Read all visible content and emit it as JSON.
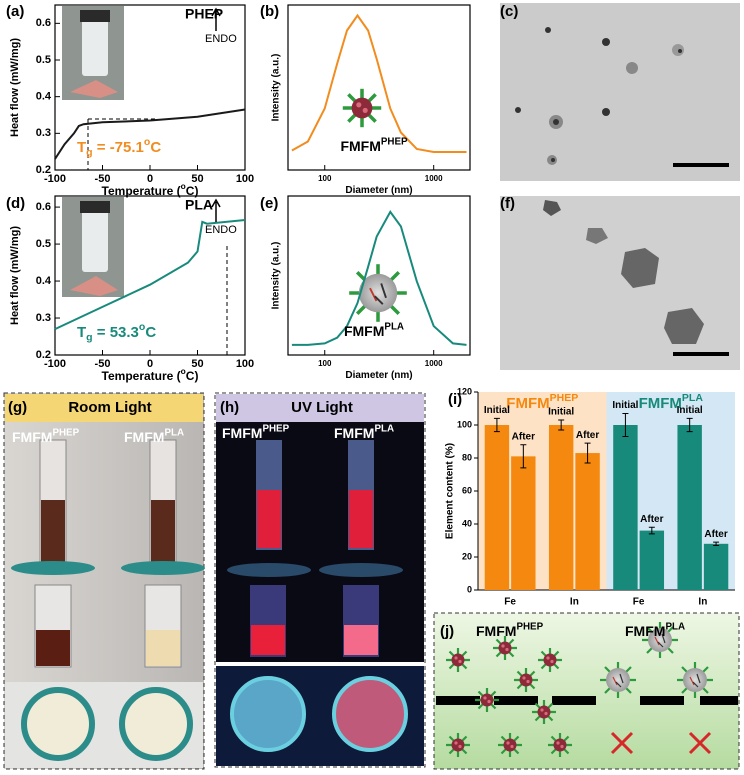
{
  "panel_labels": [
    "(a)",
    "(b)",
    "(c)",
    "(d)",
    "(e)",
    "(f)",
    "(g)",
    "(h)",
    "(i)",
    "(j)"
  ],
  "chart_data": [
    {
      "type": "line",
      "label": "PHEP",
      "annotation": "ENDO",
      "tg_label": [
        "T",
        "g",
        " = -75.1",
        "o",
        "C"
      ],
      "tg_color": "#f28c1e",
      "xlabel": [
        "Temperature (",
        "o",
        "C)"
      ],
      "ylabel": "Heat flow (mW/mg)",
      "x": [
        -100,
        -90,
        -80,
        -75,
        -70,
        -50,
        0,
        50,
        100
      ],
      "values": [
        0.23,
        0.27,
        0.3,
        0.32,
        0.325,
        0.33,
        0.335,
        0.345,
        0.365
      ],
      "color": "#1a1a1a",
      "xlim": [
        -100,
        100
      ],
      "xticks": [
        -100,
        -50,
        0,
        50,
        100
      ],
      "ylim": [
        0.2,
        0.65
      ],
      "yticks": [
        0.2,
        0.3,
        0.4,
        0.5,
        0.6
      ]
    },
    {
      "type": "line",
      "xscale": "log",
      "sample_label": [
        "FMFM",
        "PHEP"
      ],
      "xlabel": [
        "Diameter (nm)"
      ],
      "ylabel": "Intensity (a.u.)",
      "x": [
        50,
        70,
        100,
        130,
        160,
        200,
        250,
        300,
        400,
        500,
        700,
        1000,
        1500,
        2000
      ],
      "values": [
        0.13,
        0.19,
        0.41,
        0.71,
        0.93,
        1.03,
        0.93,
        0.74,
        0.41,
        0.25,
        0.14,
        0.12,
        0.12,
        0.12
      ],
      "color": "#f28c1e",
      "xlim": [
        46,
        2154
      ],
      "xticks": [
        100,
        1000
      ],
      "ylim": [
        0,
        1.1
      ]
    },
    {
      "type": "line",
      "label": "PLA",
      "annotation": "ENDO",
      "tg_label": [
        "T",
        "g",
        " = 53.3",
        "o",
        "C"
      ],
      "tg_color": "#178a7c",
      "xlabel": [
        "Temperature (",
        "o",
        "C)"
      ],
      "ylabel": "Heat flow (mW/mg)",
      "x": [
        -100,
        -50,
        0,
        40,
        50,
        55,
        60,
        100
      ],
      "values": [
        0.27,
        0.33,
        0.39,
        0.45,
        0.48,
        0.56,
        0.555,
        0.565
      ],
      "color": "#178a7c",
      "xlim": [
        -100,
        100
      ],
      "xticks": [
        -100,
        -50,
        0,
        50,
        100
      ],
      "ylim": [
        0.2,
        0.63
      ],
      "yticks": [
        0.2,
        0.3,
        0.4,
        0.5,
        0.6
      ]
    },
    {
      "type": "line",
      "xscale": "log",
      "sample_label": [
        "FMFM",
        "PLA"
      ],
      "xlabel": [
        "Diameter (nm)"
      ],
      "ylabel": "Intensity (a.u.)",
      "x": [
        50,
        70,
        100,
        130,
        160,
        200,
        250,
        300,
        400,
        500,
        700,
        1000,
        1500,
        2000
      ],
      "values": [
        0.07,
        0.07,
        0.08,
        0.12,
        0.2,
        0.36,
        0.61,
        0.82,
        0.99,
        0.89,
        0.51,
        0.2,
        0.08,
        0.07
      ],
      "color": "#178a7c",
      "xlim": [
        46,
        2154
      ],
      "xticks": [
        100,
        1000
      ],
      "ylim": [
        0,
        1.1
      ]
    },
    {
      "type": "bar",
      "ylabel": "Element content (%)",
      "categories": [
        "Fe",
        "In",
        "Fe",
        "In"
      ],
      "category_group": [
        0,
        0,
        1,
        1
      ],
      "groups": [
        {
          "label": [
            "FMFM",
            "PHEP"
          ],
          "color": "#f5890f",
          "background": "#fde2c6"
        },
        {
          "label": [
            "FMFM",
            "PLA"
          ],
          "color": "#178a7c",
          "background": "#d3e8f4"
        }
      ],
      "series": [
        {
          "name": "Initial",
          "values": [
            100,
            100,
            100,
            100
          ],
          "errors": [
            4,
            3,
            7,
            4
          ]
        },
        {
          "name": "After",
          "values": [
            81,
            83,
            36,
            28
          ],
          "errors": [
            7,
            6,
            2,
            1
          ]
        }
      ],
      "ylim": [
        0,
        120
      ],
      "yticks": [
        0,
        20,
        40,
        60,
        80,
        100,
        120
      ]
    }
  ],
  "photo_g": {
    "title": "Room Light",
    "labels": [
      [
        "FMFM",
        "PHEP"
      ],
      [
        "FMFM",
        "PLA"
      ]
    ]
  },
  "photo_h": {
    "title": "UV Light",
    "labels": [
      [
        "FMFM",
        "PHEP"
      ],
      [
        "FMFM",
        "PLA"
      ]
    ]
  },
  "diagram_j": {
    "labels": [
      [
        "FMFM",
        "PHEP"
      ],
      [
        "FMFM",
        "PLA"
      ]
    ]
  }
}
